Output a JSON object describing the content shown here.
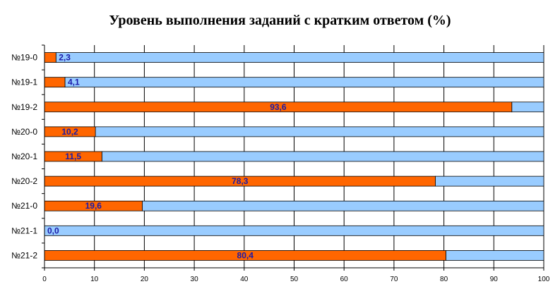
{
  "chart_data": {
    "type": "bar",
    "orientation": "horizontal",
    "stacked": "percent",
    "title": "Уровень выполнения заданий с кратким ответом (%)",
    "categories": [
      "№19-0",
      "№19-1",
      "№19-2",
      "№20-0",
      "№20-1",
      "№20-2",
      "№21-0",
      "№21-1",
      "№21-2"
    ],
    "values": [
      2.3,
      4.1,
      93.6,
      10.2,
      11.5,
      78.3,
      19.6,
      0.0,
      80.4
    ],
    "data_labels": [
      "2,3",
      "4,1",
      "93,6",
      "10,2",
      "11,5",
      "78,3",
      "19,6",
      "0,0",
      "80,4"
    ],
    "xlim": [
      0,
      100
    ],
    "xticks": [
      0,
      10,
      20,
      30,
      40,
      50,
      60,
      70,
      80,
      90,
      100
    ],
    "grid": true,
    "legend": "none",
    "colors": {
      "value": "#ff6600",
      "remainder": "#99ccff",
      "data_label": "#1a1aa8",
      "gridline": "#000000"
    }
  }
}
